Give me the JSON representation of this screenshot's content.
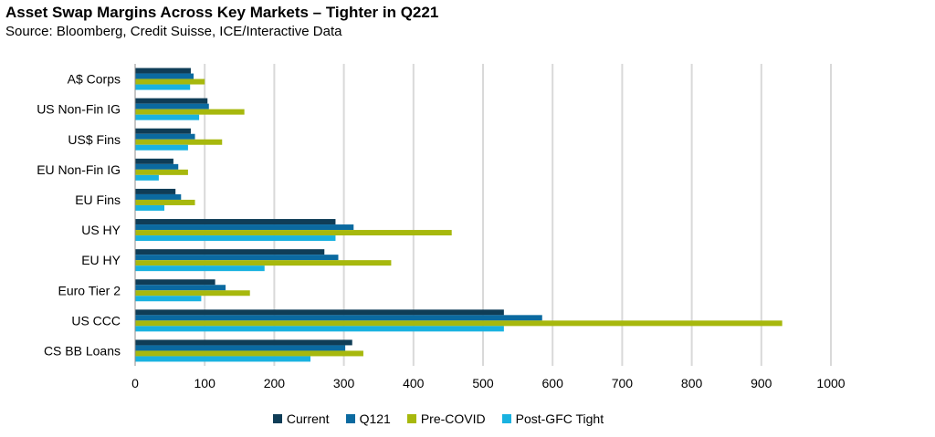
{
  "chart_data": {
    "type": "bar",
    "orientation": "horizontal",
    "title": "Asset Swap Margins Across Key Markets – Tighter in Q221",
    "subtitle": "Source: Bloomberg, Credit Suisse, ICE/Interactive Data",
    "categories": [
      "A$ Corps",
      "US Non-Fin IG",
      "US$ Fins",
      "EU Non-Fin IG",
      "EU Fins",
      "US HY",
      "EU HY",
      "Euro Tier 2",
      "US CCC",
      "CS BB Loans"
    ],
    "x_ticks": [
      "0",
      "100",
      "200",
      "300",
      "400",
      "500",
      "600",
      "700",
      "800",
      "900",
      "1000"
    ],
    "xlim": [
      0,
      1000
    ],
    "grid": true,
    "legend_position": "bottom",
    "series": [
      {
        "name": "Current",
        "color": "#0f3d57",
        "values": [
          80,
          104,
          80,
          55,
          58,
          288,
          272,
          115,
          530,
          312
        ]
      },
      {
        "name": "Q121",
        "color": "#0b6aa0",
        "values": [
          84,
          106,
          86,
          62,
          66,
          314,
          292,
          130,
          585,
          302
        ]
      },
      {
        "name": "Pre-COVID",
        "color": "#a7b80d",
        "values": [
          100,
          157,
          125,
          76,
          86,
          455,
          368,
          165,
          930,
          328
        ]
      },
      {
        "name": "Post-GFC Tight",
        "color": "#19b2e0",
        "values": [
          79,
          92,
          76,
          34,
          42,
          288,
          186,
          95,
          530,
          252
        ]
      }
    ]
  }
}
